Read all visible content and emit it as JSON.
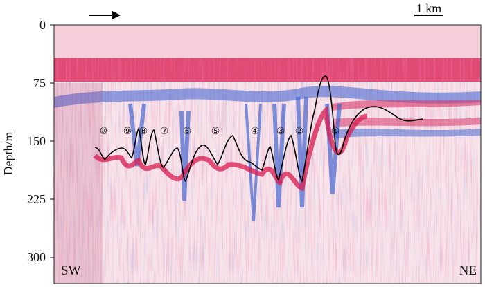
{
  "figure": {
    "y_axis_label": "Depth/m",
    "y_ticks": [
      "0",
      "75",
      "150",
      "225",
      "300"
    ],
    "left_label": "SW",
    "right_label": "NE",
    "scale_bar_label": "1 km",
    "direction_arrow": "right-arrow",
    "markers": [
      "⑩",
      "⑨",
      "⑧",
      "⑦",
      "⑥",
      "⑤",
      "④",
      "③",
      "②",
      "①"
    ]
  },
  "colors": {
    "positive": "#d81b4f",
    "negative": "#2f55c8",
    "background": "#f6dbe4",
    "interface_line": "#000000"
  }
}
